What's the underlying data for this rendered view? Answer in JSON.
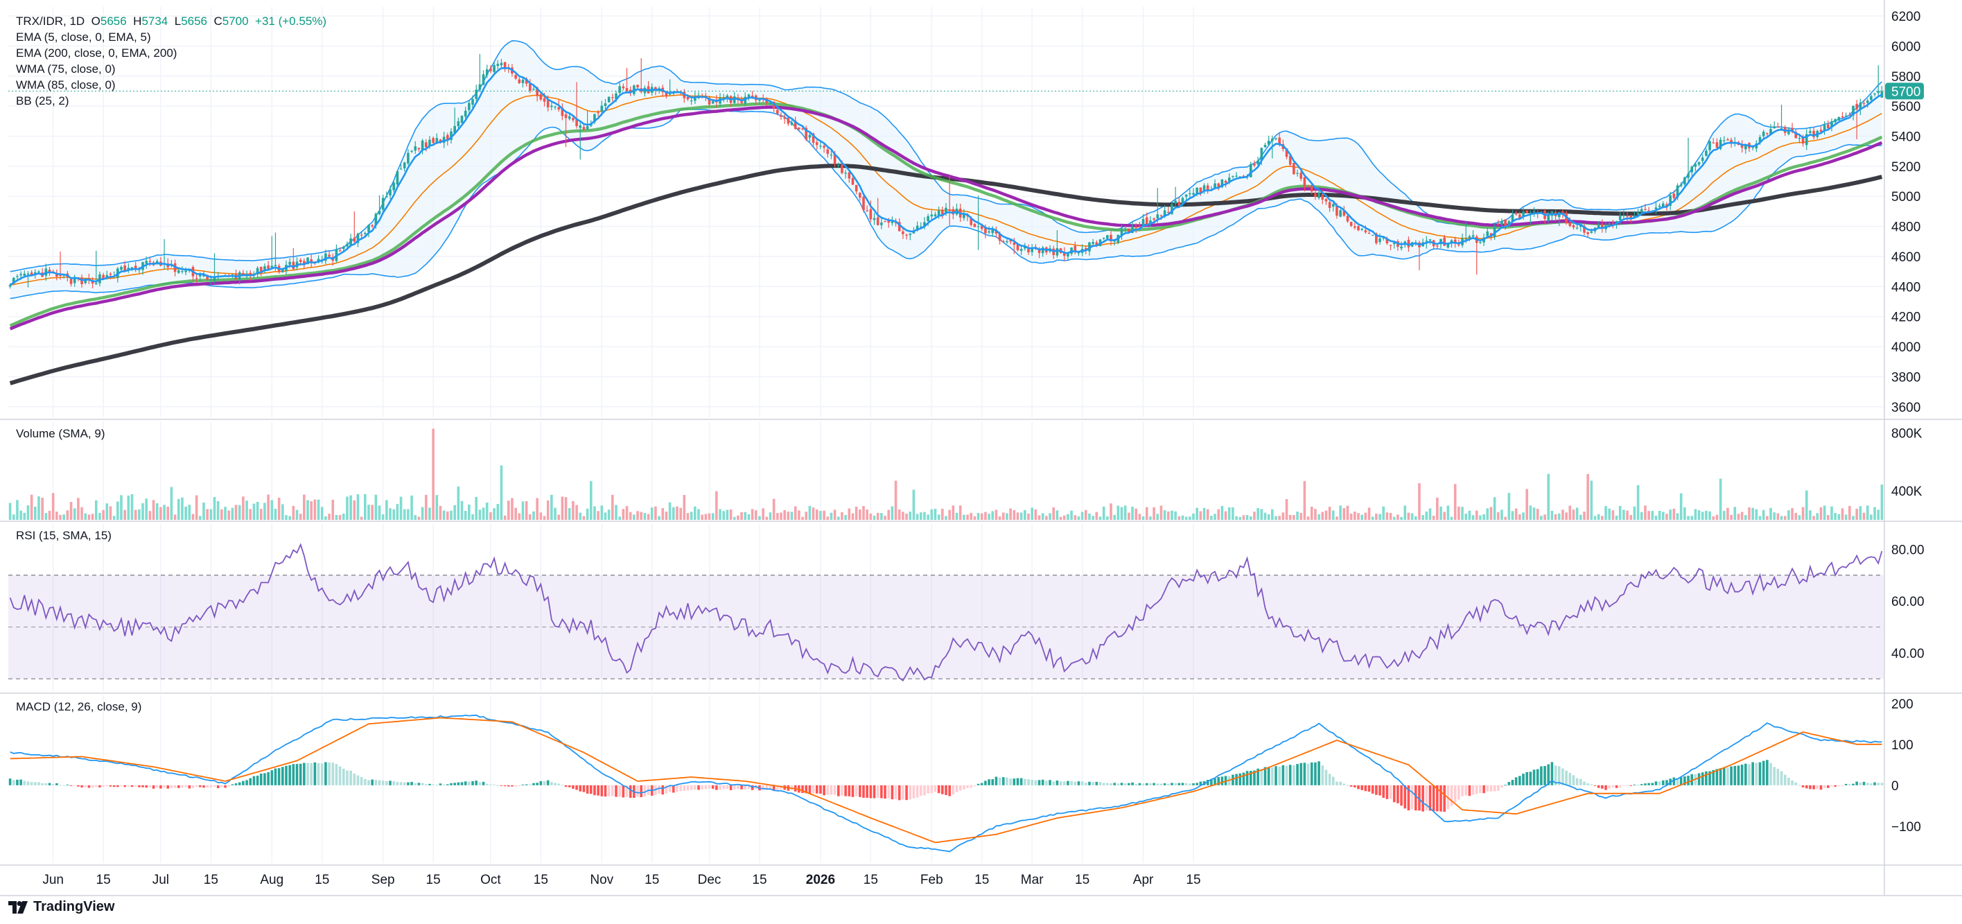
{
  "header": {
    "symbol": "TRX/IDR, 1D",
    "o_label": "O",
    "open": "5656",
    "h_label": "H",
    "high": "5734",
    "l_label": "L",
    "low": "5656",
    "c_label": "C",
    "close": "5700",
    "change": "+31 (+0.55%)"
  },
  "indicators": {
    "ema5": "EMA (5, close, 0, EMA, 5)",
    "ema200": "EMA (200, close, 0, EMA, 200)",
    "wma75": "WMA (75, close, 0)",
    "wma85": "WMA (85, close, 0)",
    "bb": "BB (25, 2)"
  },
  "panes": {
    "volume_title": "Volume (SMA, 9)",
    "rsi_title": "RSI (15, SMA, 15)",
    "macd_title": "MACD (12, 26, close, 9)"
  },
  "brand": "TradingView",
  "colors": {
    "up": "#26a69a",
    "down": "#ef5350",
    "volume_up": "#7fdcd0",
    "volume_down": "#f5a3ab",
    "ema5": "#2196f3",
    "ema25": "#f57c00",
    "wma75": "#4caf50",
    "wma85": "#9c27b0",
    "ema200": "#3b3b44",
    "bb": "#2196f3",
    "rsi": "#7e57c2",
    "macd": "#2196f3",
    "signal": "#ff6d00"
  },
  "chart_data": {
    "type": "candlestick",
    "price_axis": {
      "ticks": [
        "6200",
        "6000",
        "5800",
        "5600",
        "5400",
        "5200",
        "5000",
        "4800",
        "4600",
        "4400",
        "4200",
        "4000",
        "3800",
        "3600"
      ],
      "last_price_label": "5700",
      "ylim": [
        3530,
        6260
      ]
    },
    "time_axis": {
      "labels": [
        "Jun",
        "15",
        "Jul",
        "15",
        "Aug",
        "15",
        "Sep",
        "15",
        "Oct",
        "15",
        "Nov",
        "15",
        "Dec",
        "15",
        "2026",
        "15",
        "Feb",
        "15",
        "Mar",
        "15",
        "Apr",
        "15"
      ],
      "label_days": [
        12,
        26,
        42,
        56,
        73,
        87,
        104,
        118,
        134,
        148,
        165,
        179,
        195,
        209,
        226,
        240,
        257,
        271,
        285,
        299,
        316,
        330
      ],
      "bold_label": "2026",
      "total_days": 337
    },
    "price_keypoints": [
      [
        0,
        4440
      ],
      [
        10,
        4490
      ],
      [
        20,
        4420
      ],
      [
        30,
        4500
      ],
      [
        40,
        4560
      ],
      [
        48,
        4500
      ],
      [
        58,
        4450
      ],
      [
        70,
        4500
      ],
      [
        90,
        4600
      ],
      [
        100,
        4780
      ],
      [
        112,
        5320
      ],
      [
        122,
        5400
      ],
      [
        135,
        5900
      ],
      [
        150,
        5620
      ],
      [
        160,
        5460
      ],
      [
        170,
        5720
      ],
      [
        180,
        5700
      ],
      [
        195,
        5640
      ],
      [
        210,
        5650
      ],
      [
        215,
        5540
      ],
      [
        225,
        5350
      ],
      [
        232,
        5180
      ],
      [
        240,
        4850
      ],
      [
        250,
        4770
      ],
      [
        262,
        4920
      ],
      [
        272,
        4780
      ],
      [
        282,
        4650
      ],
      [
        295,
        4630
      ],
      [
        308,
        4730
      ],
      [
        322,
        4900
      ],
      [
        330,
        5030
      ],
      [
        345,
        5150
      ],
      [
        352,
        5400
      ],
      [
        360,
        5100
      ],
      [
        370,
        4900
      ],
      [
        380,
        4720
      ],
      [
        390,
        4680
      ],
      [
        400,
        4700
      ],
      [
        410,
        4720
      ],
      [
        420,
        4870
      ],
      [
        432,
        4880
      ],
      [
        440,
        4750
      ],
      [
        450,
        4850
      ],
      [
        462,
        4950
      ],
      [
        474,
        5350
      ],
      [
        486,
        5350
      ],
      [
        492,
        5450
      ],
      [
        500,
        5380
      ],
      [
        510,
        5520
      ],
      [
        522,
        5700
      ]
    ],
    "indicator_start": {
      "ema200": 3750,
      "wma75": 4130,
      "wma85": 4110
    },
    "volume_axis": {
      "ticks": [
        "800K",
        "400K"
      ],
      "ylim": [
        200000,
        880000
      ]
    },
    "rsi": {
      "ticks": [
        "80.00",
        "60.00",
        "40.00"
      ],
      "ylim": [
        25,
        90
      ],
      "band": [
        30,
        70
      ],
      "mid": 50,
      "keypoints": [
        [
          0,
          60
        ],
        [
          10,
          57
        ],
        [
          20,
          52
        ],
        [
          28,
          50
        ],
        [
          35,
          50
        ],
        [
          45,
          46
        ],
        [
          55,
          55
        ],
        [
          65,
          60
        ],
        [
          80,
          82
        ],
        [
          88,
          60
        ],
        [
          95,
          62
        ],
        [
          110,
          74
        ],
        [
          118,
          62
        ],
        [
          125,
          66
        ],
        [
          135,
          74
        ],
        [
          148,
          65
        ],
        [
          153,
          50
        ],
        [
          162,
          50
        ],
        [
          172,
          34
        ],
        [
          182,
          56
        ],
        [
          196,
          56
        ],
        [
          205,
          50
        ],
        [
          215,
          49
        ],
        [
          225,
          36
        ],
        [
          235,
          35
        ],
        [
          245,
          33
        ],
        [
          255,
          30
        ],
        [
          264,
          45
        ],
        [
          275,
          38
        ],
        [
          285,
          46
        ],
        [
          295,
          32
        ],
        [
          305,
          42
        ],
        [
          315,
          55
        ],
        [
          328,
          70
        ],
        [
          338,
          68
        ],
        [
          345,
          74
        ],
        [
          352,
          52
        ],
        [
          362,
          46
        ],
        [
          372,
          40
        ],
        [
          385,
          34
        ],
        [
          395,
          42
        ],
        [
          406,
          52
        ],
        [
          415,
          60
        ],
        [
          425,
          48
        ],
        [
          438,
          56
        ],
        [
          450,
          62
        ],
        [
          460,
          72
        ],
        [
          470,
          70
        ],
        [
          480,
          64
        ],
        [
          492,
          68
        ],
        [
          505,
          72
        ],
        [
          520,
          76
        ]
      ]
    },
    "macd": {
      "ticks": [
        "200",
        "100",
        "0",
        "−100"
      ],
      "ylim": [
        -190,
        220
      ],
      "macd_keypoints": [
        [
          0,
          80
        ],
        [
          15,
          70
        ],
        [
          30,
          55
        ],
        [
          45,
          30
        ],
        [
          60,
          5
        ],
        [
          75,
          90
        ],
        [
          90,
          160
        ],
        [
          110,
          165
        ],
        [
          130,
          170
        ],
        [
          150,
          130
        ],
        [
          165,
          30
        ],
        [
          175,
          -20
        ],
        [
          190,
          10
        ],
        [
          205,
          0
        ],
        [
          218,
          -20
        ],
        [
          235,
          -90
        ],
        [
          250,
          -150
        ],
        [
          262,
          -160
        ],
        [
          275,
          -100
        ],
        [
          292,
          -70
        ],
        [
          310,
          -50
        ],
        [
          330,
          -10
        ],
        [
          345,
          60
        ],
        [
          365,
          150
        ],
        [
          385,
          30
        ],
        [
          400,
          -90
        ],
        [
          415,
          -80
        ],
        [
          430,
          10
        ],
        [
          445,
          -30
        ],
        [
          460,
          -10
        ],
        [
          475,
          70
        ],
        [
          490,
          150
        ],
        [
          505,
          110
        ],
        [
          522,
          105
        ]
      ],
      "signal_keypoints": [
        [
          0,
          65
        ],
        [
          20,
          70
        ],
        [
          40,
          45
        ],
        [
          60,
          10
        ],
        [
          80,
          60
        ],
        [
          100,
          150
        ],
        [
          120,
          165
        ],
        [
          140,
          155
        ],
        [
          160,
          80
        ],
        [
          175,
          10
        ],
        [
          190,
          20
        ],
        [
          205,
          10
        ],
        [
          220,
          -10
        ],
        [
          240,
          -80
        ],
        [
          258,
          -140
        ],
        [
          275,
          -120
        ],
        [
          292,
          -80
        ],
        [
          310,
          -55
        ],
        [
          330,
          -15
        ],
        [
          350,
          40
        ],
        [
          370,
          110
        ],
        [
          390,
          50
        ],
        [
          405,
          -60
        ],
        [
          420,
          -70
        ],
        [
          440,
          -20
        ],
        [
          460,
          -20
        ],
        [
          480,
          50
        ],
        [
          500,
          130
        ],
        [
          515,
          100
        ],
        [
          522,
          100
        ]
      ]
    }
  }
}
